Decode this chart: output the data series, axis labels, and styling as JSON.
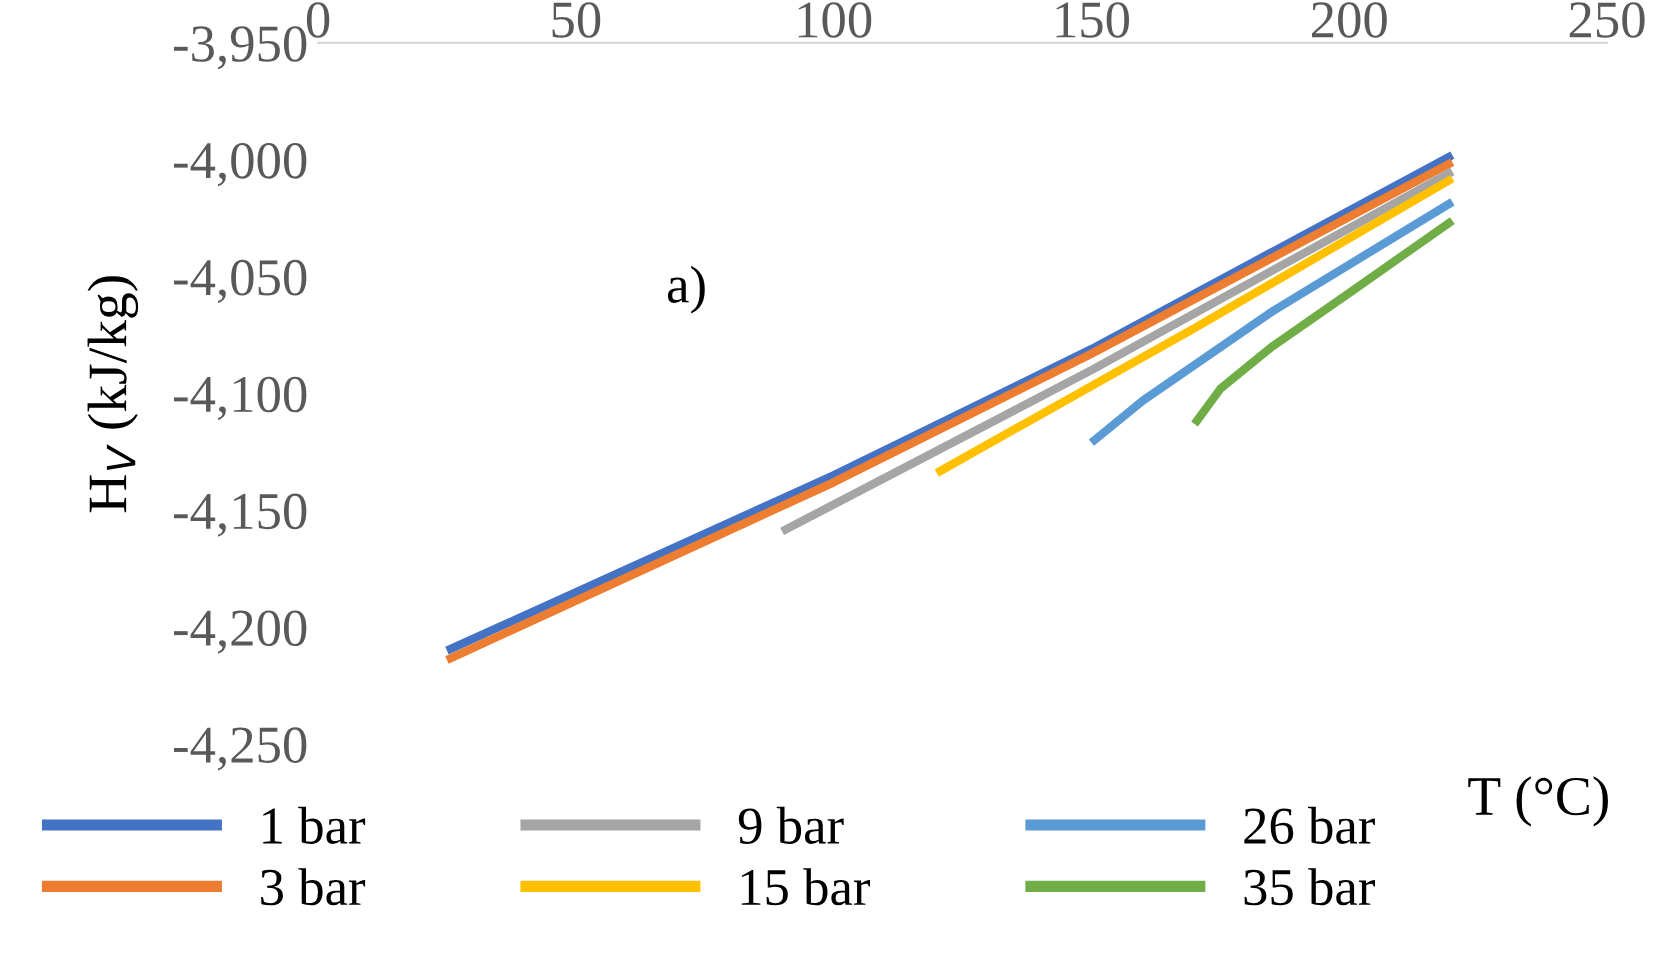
{
  "chart_data": {
    "type": "line",
    "xlabel": "T (°C)",
    "ylabel": "H$_{V}$ (kJ/kg)",
    "annotations": [
      "a)"
    ],
    "xlim": [
      0,
      250
    ],
    "xticks": [
      0,
      50,
      100,
      150,
      200,
      250
    ],
    "ylim": [
      -4250,
      -3950
    ],
    "yticks": [
      {
        "value": -4250,
        "label": "-4,250"
      },
      {
        "value": -4200,
        "label": "-4,200"
      },
      {
        "value": -4150,
        "label": "-4,150"
      },
      {
        "value": -4100,
        "label": "-4,100"
      },
      {
        "value": -4050,
        "label": "-4,050"
      },
      {
        "value": -4000,
        "label": "-4,000"
      },
      {
        "value": -3950,
        "label": "-3,950"
      }
    ],
    "grid": false,
    "legend": "bottom",
    "marker": "none",
    "line_style": "solid",
    "series": [
      {
        "name": "1 bar",
        "color": "#4472c4",
        "x": [
          25,
          100,
          150,
          220
        ],
        "values": [
          -4210,
          -4135,
          -4081,
          -3998
        ]
      },
      {
        "name": "3 bar",
        "color": "#ed7d31",
        "x": [
          25,
          100,
          150,
          220
        ],
        "values": [
          -4214,
          -4138,
          -4083,
          -4001
        ]
      },
      {
        "name": "9 bar",
        "color": "#a5a5a5",
        "x": [
          90,
          150,
          220
        ],
        "values": [
          -4159,
          -4090,
          -4005
        ]
      },
      {
        "name": "15 bar",
        "color": "#ffc000",
        "x": [
          120,
          170,
          220
        ],
        "values": [
          -4134,
          -4072,
          -4008
        ]
      },
      {
        "name": "26 bar",
        "color": "#5b9bd5",
        "x": [
          150,
          160,
          185,
          220
        ],
        "values": [
          -4121,
          -4103,
          -4065,
          -4018
        ]
      },
      {
        "name": "35 bar",
        "color": "#70ad47",
        "x": [
          170,
          175,
          185,
          200,
          220
        ],
        "values": [
          -4113,
          -4098,
          -4080,
          -4057,
          -4026
        ]
      }
    ]
  }
}
